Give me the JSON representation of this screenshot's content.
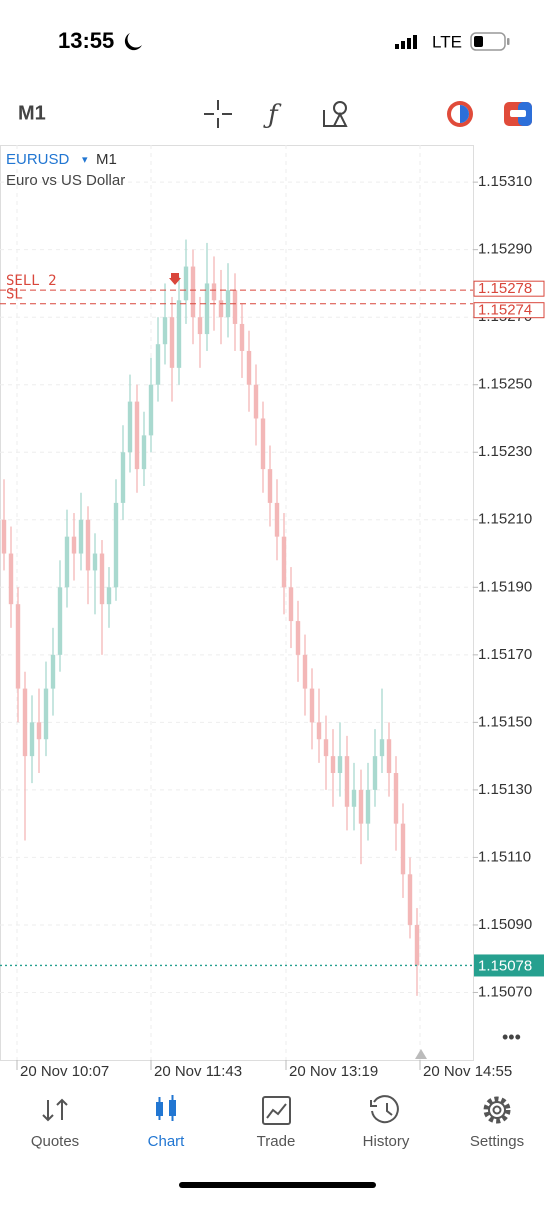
{
  "status_bar": {
    "time": "13:55",
    "network": "LTE"
  },
  "toolbar": {
    "timeframe": "M1"
  },
  "chart_data": {
    "type": "candlestick",
    "symbol": "EURUSD",
    "timeframe": "M1",
    "description": "Euro vs US Dollar",
    "up_color": "#a9d9cf",
    "down_color": "#f3b7b7",
    "ylim": [
      1.1505,
      1.15321
    ],
    "yticks": [
      {
        "value": 1.1531,
        "label": "1.15310"
      },
      {
        "value": 1.1529,
        "label": "1.15290"
      },
      {
        "value": 1.1527,
        "label": "1.15270"
      },
      {
        "value": 1.1525,
        "label": "1.15250"
      },
      {
        "value": 1.1523,
        "label": "1.15230"
      },
      {
        "value": 1.1521,
        "label": "1.15210"
      },
      {
        "value": 1.1519,
        "label": "1.15190"
      },
      {
        "value": 1.1517,
        "label": "1.15170"
      },
      {
        "value": 1.1515,
        "label": "1.15150"
      },
      {
        "value": 1.1513,
        "label": "1.15130"
      },
      {
        "value": 1.1511,
        "label": "1.15110"
      },
      {
        "value": 1.1509,
        "label": "1.15090"
      },
      {
        "value": 1.1507,
        "label": "1.15070"
      }
    ],
    "x_labels": [
      "20 Nov 10:07",
      "20 Nov 11:43",
      "20 Nov 13:19",
      "20 Nov 14:55"
    ],
    "levels": [
      {
        "name": "SELL 2",
        "value": 1.15278,
        "color": "#d9463b"
      },
      {
        "name": "SL",
        "value": 1.15274,
        "color": "#d9463b"
      }
    ],
    "current_price": {
      "value": 1.15078,
      "color": "#26a08f"
    },
    "ohlc": [
      [
        1.1521,
        1.15222,
        1.15195,
        1.152
      ],
      [
        1.152,
        1.15208,
        1.15178,
        1.15185
      ],
      [
        1.15185,
        1.1519,
        1.1515,
        1.1516
      ],
      [
        1.1516,
        1.15165,
        1.15115,
        1.1514
      ],
      [
        1.1514,
        1.15158,
        1.15132,
        1.1515
      ],
      [
        1.1515,
        1.1516,
        1.15135,
        1.15145
      ],
      [
        1.15145,
        1.15168,
        1.1514,
        1.1516
      ],
      [
        1.1516,
        1.15178,
        1.15152,
        1.1517
      ],
      [
        1.1517,
        1.15198,
        1.15165,
        1.1519
      ],
      [
        1.1519,
        1.15213,
        1.15184,
        1.15205
      ],
      [
        1.15205,
        1.15212,
        1.15192,
        1.152
      ],
      [
        1.152,
        1.15218,
        1.15195,
        1.1521
      ],
      [
        1.1521,
        1.15214,
        1.15185,
        1.15195
      ],
      [
        1.15195,
        1.15206,
        1.15182,
        1.152
      ],
      [
        1.152,
        1.15204,
        1.1517,
        1.15185
      ],
      [
        1.15185,
        1.15196,
        1.15178,
        1.1519
      ],
      [
        1.1519,
        1.15222,
        1.15186,
        1.15215
      ],
      [
        1.15215,
        1.15238,
        1.1521,
        1.1523
      ],
      [
        1.1523,
        1.15253,
        1.15224,
        1.15245
      ],
      [
        1.15245,
        1.1525,
        1.15218,
        1.15225
      ],
      [
        1.15225,
        1.15242,
        1.1522,
        1.15235
      ],
      [
        1.15235,
        1.15258,
        1.1523,
        1.1525
      ],
      [
        1.1525,
        1.1527,
        1.15245,
        1.15262
      ],
      [
        1.15262,
        1.1528,
        1.15256,
        1.1527
      ],
      [
        1.1527,
        1.15276,
        1.15245,
        1.15255
      ],
      [
        1.15255,
        1.15282,
        1.1525,
        1.15275
      ],
      [
        1.15275,
        1.15293,
        1.15268,
        1.15285
      ],
      [
        1.15285,
        1.1529,
        1.15262,
        1.1527
      ],
      [
        1.1527,
        1.15276,
        1.15255,
        1.15265
      ],
      [
        1.15265,
        1.15292,
        1.1526,
        1.1528
      ],
      [
        1.1528,
        1.15288,
        1.15266,
        1.15275
      ],
      [
        1.15275,
        1.15284,
        1.15262,
        1.1527
      ],
      [
        1.1527,
        1.15286,
        1.15264,
        1.15278
      ],
      [
        1.15278,
        1.15283,
        1.1526,
        1.15268
      ],
      [
        1.15268,
        1.15274,
        1.15252,
        1.1526
      ],
      [
        1.1526,
        1.15266,
        1.15242,
        1.1525
      ],
      [
        1.1525,
        1.15256,
        1.15232,
        1.1524
      ],
      [
        1.1524,
        1.15245,
        1.15218,
        1.15225
      ],
      [
        1.15225,
        1.15232,
        1.15208,
        1.15215
      ],
      [
        1.15215,
        1.15222,
        1.15198,
        1.15205
      ],
      [
        1.15205,
        1.15212,
        1.15182,
        1.1519
      ],
      [
        1.1519,
        1.15196,
        1.15172,
        1.1518
      ],
      [
        1.1518,
        1.15186,
        1.15162,
        1.1517
      ],
      [
        1.1517,
        1.15176,
        1.15152,
        1.1516
      ],
      [
        1.1516,
        1.15166,
        1.15142,
        1.1515
      ],
      [
        1.1515,
        1.1516,
        1.15138,
        1.15145
      ],
      [
        1.15145,
        1.15152,
        1.1513,
        1.1514
      ],
      [
        1.1514,
        1.15148,
        1.15125,
        1.15135
      ],
      [
        1.15135,
        1.1515,
        1.15128,
        1.1514
      ],
      [
        1.1514,
        1.15146,
        1.15118,
        1.15125
      ],
      [
        1.15125,
        1.15138,
        1.15118,
        1.1513
      ],
      [
        1.1513,
        1.15136,
        1.15108,
        1.1512
      ],
      [
        1.1512,
        1.15138,
        1.15115,
        1.1513
      ],
      [
        1.1513,
        1.15148,
        1.15125,
        1.1514
      ],
      [
        1.1514,
        1.1516,
        1.15135,
        1.15145
      ],
      [
        1.15145,
        1.1515,
        1.15128,
        1.15135
      ],
      [
        1.15135,
        1.1514,
        1.15112,
        1.1512
      ],
      [
        1.1512,
        1.15126,
        1.15098,
        1.15105
      ],
      [
        1.15105,
        1.1511,
        1.15086,
        1.1509
      ],
      [
        1.1509,
        1.15095,
        1.15069,
        1.15078
      ]
    ]
  },
  "nav": {
    "tabs": [
      "Quotes",
      "Chart",
      "Trade",
      "History",
      "Settings"
    ],
    "active": "Chart"
  }
}
